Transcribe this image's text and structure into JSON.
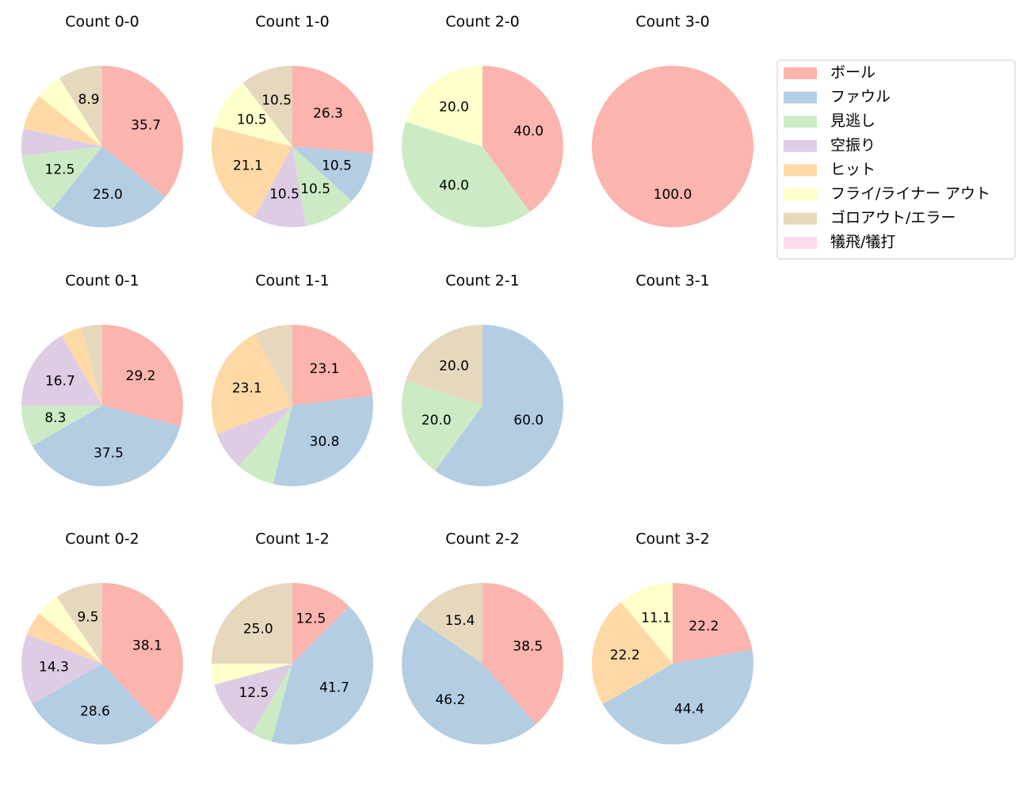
{
  "chart_data": [
    {
      "type": "pie",
      "title": "Count 0-0",
      "values": [
        35.7,
        25.0,
        12.5,
        5.4,
        7.1,
        5.4,
        8.9,
        0
      ],
      "value_labels": [
        "35.7",
        "25.0",
        "12.5",
        null,
        null,
        null,
        "8.9",
        null
      ]
    },
    {
      "type": "pie",
      "title": "Count 1-0",
      "values": [
        26.3,
        10.5,
        10.5,
        10.5,
        21.1,
        10.5,
        10.5,
        0
      ],
      "value_labels": [
        "26.3",
        "10.5",
        "10.5",
        "10.5",
        "21.1",
        "10.5",
        "10.5",
        null
      ]
    },
    {
      "type": "pie",
      "title": "Count 2-0",
      "values": [
        40.0,
        0,
        40.0,
        0,
        0,
        20.0,
        0,
        0
      ],
      "value_labels": [
        "40.0",
        null,
        "40.0",
        null,
        null,
        "20.0",
        null,
        null
      ]
    },
    {
      "type": "pie",
      "title": "Count 3-0",
      "values": [
        100.0,
        0,
        0,
        0,
        0,
        0,
        0,
        0
      ],
      "value_labels": [
        "100.0",
        null,
        null,
        null,
        null,
        null,
        null,
        null
      ]
    },
    {
      "type": "pie",
      "title": "Count 0-1",
      "values": [
        29.2,
        37.5,
        8.3,
        16.7,
        4.2,
        0,
        4.2,
        0
      ],
      "value_labels": [
        "29.2",
        "37.5",
        "8.3",
        "16.7",
        null,
        null,
        null,
        null
      ]
    },
    {
      "type": "pie",
      "title": "Count 1-1",
      "values": [
        23.1,
        30.8,
        7.7,
        7.7,
        23.1,
        0,
        7.7,
        0
      ],
      "value_labels": [
        "23.1",
        "30.8",
        null,
        null,
        "23.1",
        null,
        null,
        null
      ]
    },
    {
      "type": "pie",
      "title": "Count 2-1",
      "values": [
        0,
        60.0,
        20.0,
        0,
        0,
        0,
        20.0,
        0
      ],
      "value_labels": [
        null,
        "60.0",
        "20.0",
        null,
        null,
        null,
        "20.0",
        null
      ]
    },
    {
      "type": "pie",
      "title": "Count 3-1",
      "values": [
        0,
        0,
        0,
        0,
        0,
        0,
        0,
        0
      ],
      "value_labels": [
        null,
        null,
        null,
        null,
        null,
        null,
        null,
        null
      ]
    },
    {
      "type": "pie",
      "title": "Count 0-2",
      "values": [
        38.1,
        28.6,
        0,
        14.3,
        4.8,
        4.8,
        9.5,
        0
      ],
      "value_labels": [
        "38.1",
        "28.6",
        null,
        "14.3",
        null,
        null,
        "9.5",
        null
      ]
    },
    {
      "type": "pie",
      "title": "Count 1-2",
      "values": [
        12.5,
        41.7,
        4.2,
        12.5,
        0,
        4.2,
        25.0,
        0
      ],
      "value_labels": [
        "12.5",
        "41.7",
        null,
        "12.5",
        null,
        null,
        "25.0",
        null
      ]
    },
    {
      "type": "pie",
      "title": "Count 2-2",
      "values": [
        38.5,
        46.2,
        0,
        0,
        0,
        0,
        15.4,
        0
      ],
      "value_labels": [
        "38.5",
        "46.2",
        null,
        null,
        null,
        null,
        "15.4",
        null
      ]
    },
    {
      "type": "pie",
      "title": "Count 3-2",
      "values": [
        22.2,
        44.4,
        0,
        0,
        22.2,
        11.1,
        0,
        0
      ],
      "value_labels": [
        "22.2",
        "44.4",
        null,
        null,
        "22.2",
        "11.1",
        null,
        null
      ]
    }
  ],
  "legend": {
    "labels": [
      "ボール",
      "ファウル",
      "見逃し",
      "空振り",
      "ヒット",
      "フライ/ライナー アウト",
      "ゴロアウト/エラー",
      "犠飛/犠打"
    ],
    "colors": [
      "#fbb4ae",
      "#b3cde3",
      "#ccebc5",
      "#decbe4",
      "#fed9a6",
      "#ffffcc",
      "#e5d8bd",
      "#fddaec"
    ]
  }
}
